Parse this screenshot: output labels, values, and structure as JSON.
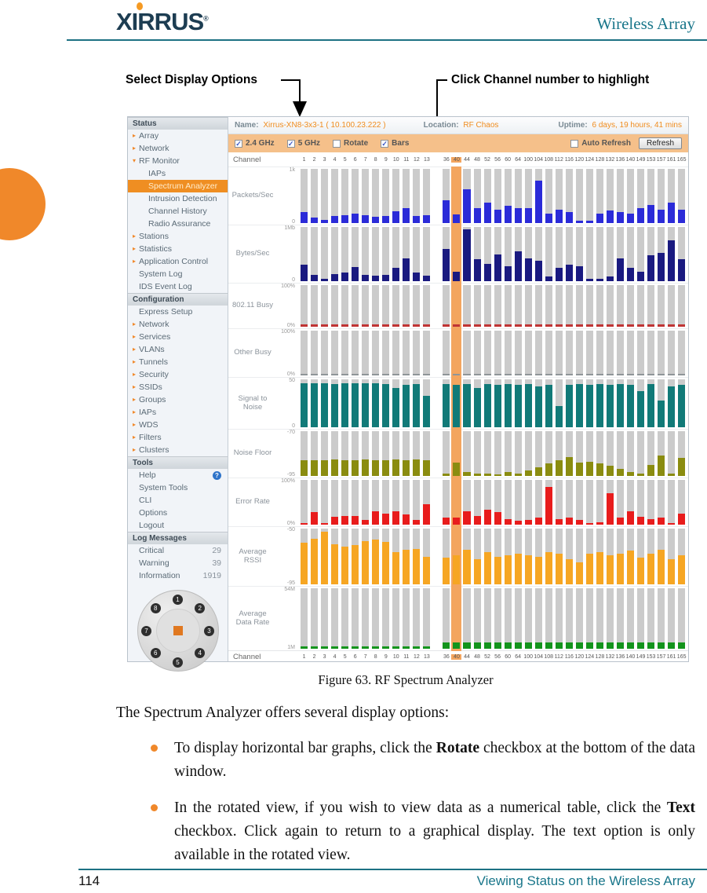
{
  "page": {
    "brand": {
      "logo": "XIRRUS",
      "reg": "®",
      "header_title": "Wireless Array"
    },
    "callouts": {
      "left": "Select Display Options",
      "right": "Click Channel number to highlight"
    },
    "figure_caption": "Figure 63. RF Spectrum Analyzer",
    "body": {
      "intro": "The Spectrum Analyzer offers several display options:",
      "bullets": [
        {
          "pre": "To display horizontal bar graphs, click the ",
          "bold": "Rotate",
          "post": " checkbox at the bottom of the data window."
        },
        {
          "pre": "In the rotated view, if you wish to view data as a numerical table, click the ",
          "bold": "Text",
          "post": " checkbox. Click again to return to a graphical display. The text option is only available in the rotated view."
        }
      ]
    },
    "footer": {
      "page_number": "114",
      "text": "Viewing Status on the Wireless Array"
    }
  },
  "app": {
    "status_bar": {
      "name_label": "Name:",
      "name_value": "Xirrus-XN8-3x3-1",
      "ip_value": "( 10.100.23.222 )",
      "location_label": "Location:",
      "location_value": "RF Chaos",
      "uptime_label": "Uptime:",
      "uptime_value": "6 days, 19 hours, 41 mins"
    },
    "toolbar": {
      "options": [
        {
          "label": "2.4 GHz",
          "checked": true
        },
        {
          "label": "5 GHz",
          "checked": true
        },
        {
          "label": "Rotate",
          "checked": false
        },
        {
          "label": "Bars",
          "checked": true
        }
      ],
      "auto_refresh_label": "Auto Refresh",
      "auto_refresh_checked": false,
      "refresh_button": "Refresh"
    },
    "sidebar": {
      "sections": [
        {
          "title": "Status",
          "items": [
            {
              "label": "Array",
              "arrow": true
            },
            {
              "label": "Network",
              "arrow": true
            },
            {
              "label": "RF Monitor",
              "arrow": true,
              "expanded": true
            },
            {
              "label": "IAPs",
              "indent": true
            },
            {
              "label": "Spectrum Analyzer",
              "indent": true,
              "selected": true
            },
            {
              "label": "Intrusion Detection",
              "indent": true
            },
            {
              "label": "Channel History",
              "indent": true
            },
            {
              "label": "Radio Assurance",
              "indent": true
            },
            {
              "label": "Stations",
              "arrow": true
            },
            {
              "label": "Statistics",
              "arrow": true
            },
            {
              "label": "Application Control",
              "arrow": true
            },
            {
              "label": "System Log"
            },
            {
              "label": "IDS Event Log"
            }
          ]
        },
        {
          "title": "Configuration",
          "items": [
            {
              "label": "Express Setup"
            },
            {
              "label": "Network",
              "arrow": true
            },
            {
              "label": "Services",
              "arrow": true
            },
            {
              "label": "VLANs",
              "arrow": true
            },
            {
              "label": "Tunnels",
              "arrow": true
            },
            {
              "label": "Security",
              "arrow": true
            },
            {
              "label": "SSIDs",
              "arrow": true
            },
            {
              "label": "Groups",
              "arrow": true
            },
            {
              "label": "IAPs",
              "arrow": true
            },
            {
              "label": "WDS",
              "arrow": true
            },
            {
              "label": "Filters",
              "arrow": true
            },
            {
              "label": "Clusters",
              "arrow": true
            }
          ]
        },
        {
          "title": "Tools",
          "items": [
            {
              "label": "Help",
              "help": true
            },
            {
              "label": "System Tools"
            },
            {
              "label": "CLI"
            },
            {
              "label": "Options"
            },
            {
              "label": "Logout"
            }
          ]
        },
        {
          "title": "Log Messages",
          "items": [
            {
              "label": "Critical",
              "value": "29"
            },
            {
              "label": "Warning",
              "value": "39"
            },
            {
              "label": "Information",
              "value": "1919"
            }
          ]
        }
      ]
    },
    "device": {
      "ports": [
        "1",
        "2",
        "3",
        "4",
        "5",
        "6",
        "7",
        "8"
      ]
    }
  },
  "chart_data": {
    "type": "bar",
    "title": "RF Spectrum Analyzer — per-channel vertical bar charts",
    "categories_24ghz": [
      "1",
      "2",
      "3",
      "4",
      "5",
      "6",
      "7",
      "8",
      "9",
      "10",
      "11",
      "12",
      "13"
    ],
    "categories_5ghz": [
      "36",
      "40",
      "44",
      "48",
      "52",
      "56",
      "60",
      "64",
      "100",
      "104",
      "108",
      "112",
      "116",
      "120",
      "124",
      "128",
      "132",
      "136",
      "140",
      "149",
      "153",
      "157",
      "161",
      "165"
    ],
    "highlighted_channel": "40",
    "axis_label_row": "Channel",
    "values_are": "fraction of full row height (0-1)",
    "rows": [
      {
        "label": "Packets/Sec",
        "ymax_label": "1k",
        "ymin_label": "0",
        "color": "#2b2bd8",
        "values": [
          0.2,
          0.1,
          0.06,
          0.13,
          0.15,
          0.17,
          0.14,
          0.12,
          0.13,
          0.22,
          0.28,
          0.13,
          0.15,
          0.42,
          0.16,
          0.62,
          0.28,
          0.38,
          0.25,
          0.32,
          0.27,
          0.27,
          0.78,
          0.18,
          0.25,
          0.2,
          0.05,
          0.05,
          0.18,
          0.23,
          0.2,
          0.17,
          0.27,
          0.33,
          0.25,
          0.38,
          0.24
        ]
      },
      {
        "label": "Bytes/Sec",
        "ymax_label": "1Mb",
        "ymin_label": "0",
        "color": "#1a1a80",
        "values": [
          0.3,
          0.12,
          0.05,
          0.13,
          0.16,
          0.26,
          0.12,
          0.1,
          0.12,
          0.24,
          0.42,
          0.16,
          0.1,
          0.6,
          0.18,
          0.95,
          0.4,
          0.32,
          0.5,
          0.28,
          0.55,
          0.42,
          0.38,
          0.08,
          0.25,
          0.3,
          0.27,
          0.04,
          0.04,
          0.08,
          0.42,
          0.25,
          0.18,
          0.48,
          0.52,
          0.75,
          0.4
        ]
      },
      {
        "label": "802.11 Busy",
        "ymax_label": "100%",
        "ymin_label": "0%",
        "color": "#c03434",
        "values": [
          0.05,
          0.05,
          0.05,
          0.05,
          0.05,
          0.05,
          0.05,
          0.05,
          0.05,
          0.05,
          0.05,
          0.05,
          0.05,
          0.05,
          0.05,
          0.05,
          0.05,
          0.05,
          0.05,
          0.05,
          0.05,
          0.05,
          0.05,
          0.05,
          0.05,
          0.05,
          0.05,
          0.05,
          0.05,
          0.05,
          0.05,
          0.05,
          0.05,
          0.05,
          0.05,
          0.05,
          0.05
        ]
      },
      {
        "label": "Other Busy",
        "ymax_label": "100%",
        "ymin_label": "0%",
        "color": "#8f9598",
        "values": [
          0.03,
          0.03,
          0.03,
          0.03,
          0.03,
          0.03,
          0.03,
          0.03,
          0.03,
          0.03,
          0.03,
          0.03,
          0.03,
          0.03,
          0.03,
          0.03,
          0.03,
          0.03,
          0.03,
          0.03,
          0.03,
          0.03,
          0.03,
          0.03,
          0.03,
          0.03,
          0.03,
          0.03,
          0.03,
          0.03,
          0.03,
          0.03,
          0.03,
          0.03,
          0.03,
          0.03,
          0.03
        ]
      },
      {
        "label": "Signal to Noise",
        "ymax_label": "50",
        "ymin_label": "0",
        "color": "#117a78",
        "values": [
          0.92,
          0.92,
          0.92,
          0.9,
          0.92,
          0.92,
          0.92,
          0.92,
          0.9,
          0.82,
          0.88,
          0.9,
          0.65,
          0.9,
          0.88,
          0.9,
          0.82,
          0.9,
          0.88,
          0.9,
          0.88,
          0.9,
          0.85,
          0.88,
          0.45,
          0.88,
          0.9,
          0.88,
          0.9,
          0.88,
          0.9,
          0.88,
          0.75,
          0.9,
          0.55,
          0.85,
          0.88
        ]
      },
      {
        "label": "Noise Floor",
        "ymax_label": "-70",
        "ymin_label": "-95",
        "color": "#8a8c10",
        "values": [
          0.35,
          0.35,
          0.35,
          0.36,
          0.35,
          0.35,
          0.36,
          0.35,
          0.35,
          0.36,
          0.35,
          0.36,
          0.35,
          0.05,
          0.3,
          0.08,
          0.05,
          0.05,
          0.04,
          0.08,
          0.05,
          0.12,
          0.2,
          0.28,
          0.35,
          0.42,
          0.3,
          0.32,
          0.28,
          0.22,
          0.15,
          0.08,
          0.05,
          0.25,
          0.45,
          0.06,
          0.4
        ]
      },
      {
        "label": "Error Rate",
        "ymax_label": "100%",
        "ymin_label": "0%",
        "color": "#e81c1c",
        "values": [
          0.04,
          0.28,
          0.03,
          0.18,
          0.2,
          0.2,
          0.1,
          0.3,
          0.25,
          0.3,
          0.22,
          0.1,
          0.45,
          0.15,
          0.15,
          0.3,
          0.2,
          0.33,
          0.28,
          0.12,
          0.08,
          0.1,
          0.15,
          0.85,
          0.12,
          0.15,
          0.1,
          0.04,
          0.06,
          0.7,
          0.15,
          0.3,
          0.18,
          0.12,
          0.15,
          0.04,
          0.25
        ]
      },
      {
        "label": "Average RSSI",
        "ymax_label": "-50",
        "ymin_label": "-95",
        "color": "#f6a623",
        "values": [
          0.75,
          0.82,
          0.95,
          0.72,
          0.68,
          0.7,
          0.78,
          0.8,
          0.76,
          0.58,
          0.62,
          0.64,
          0.5,
          0.48,
          0.52,
          0.62,
          0.45,
          0.58,
          0.5,
          0.52,
          0.55,
          0.52,
          0.5,
          0.58,
          0.55,
          0.45,
          0.4,
          0.55,
          0.58,
          0.52,
          0.55,
          0.6,
          0.48,
          0.55,
          0.62,
          0.45,
          0.52
        ]
      },
      {
        "label": "Average Data Rate",
        "ymax_label": "54M",
        "ymin_label": "1M",
        "color": "#13941c",
        "values": [
          0.04,
          0.04,
          0.04,
          0.04,
          0.04,
          0.04,
          0.04,
          0.04,
          0.04,
          0.04,
          0.04,
          0.04,
          0.04,
          0.1,
          0.1,
          0.1,
          0.1,
          0.1,
          0.1,
          0.1,
          0.1,
          0.1,
          0.1,
          0.1,
          0.1,
          0.1,
          0.1,
          0.1,
          0.1,
          0.1,
          0.1,
          0.1,
          0.1,
          0.1,
          0.1,
          0.1,
          0.1
        ]
      }
    ]
  }
}
